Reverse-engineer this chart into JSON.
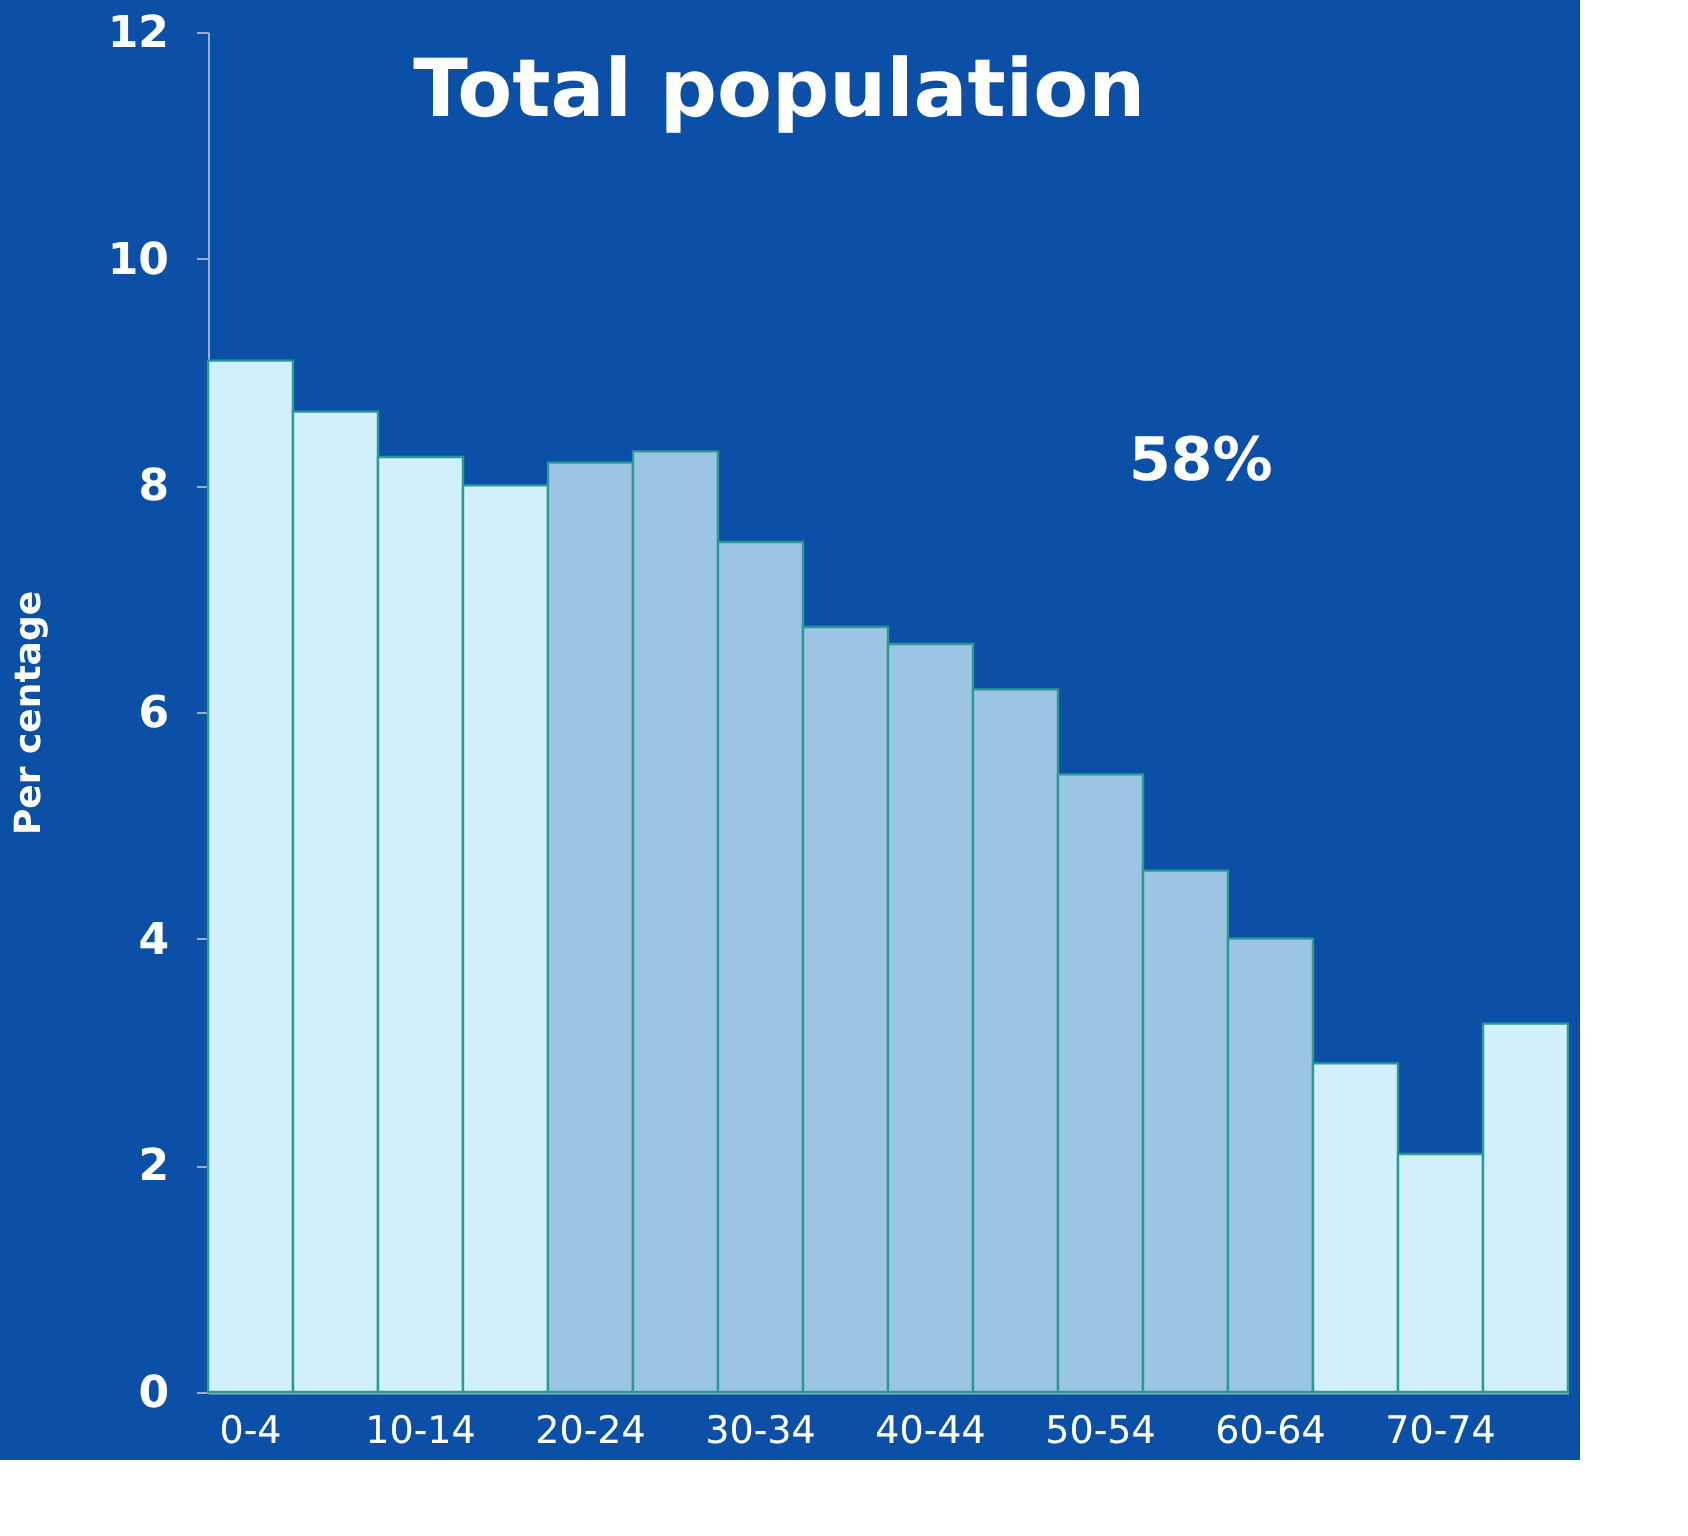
{
  "chart_data": {
    "type": "bar",
    "title": "Total population",
    "ylabel": "Per centage",
    "categories": [
      "0-4",
      null,
      "10-14",
      null,
      "20-24",
      null,
      "30-34",
      null,
      "40-44",
      null,
      "50-54",
      null,
      "60-64",
      null,
      "70-74",
      null
    ],
    "values": [
      9.1,
      8.65,
      8.25,
      8.0,
      8.2,
      8.3,
      7.5,
      6.75,
      6.6,
      6.2,
      5.45,
      4.6,
      4.0,
      2.9,
      2.1,
      3.25
    ],
    "colors": [
      "#d2effc",
      "#d2effc",
      "#d2effc",
      "#d2effc",
      "#9cc5e3",
      "#9cc5e3",
      "#9cc5e3",
      "#9cc5e3",
      "#9cc5e3",
      "#9cc5e3",
      "#9cc5e3",
      "#9cc5e3",
      "#9cc5e3",
      "#d2effc",
      "#d2effc",
      "#d2effc"
    ],
    "ylim": [
      0,
      12
    ],
    "yticks": [
      0,
      2,
      4,
      6,
      8,
      10,
      12
    ],
    "grid": false,
    "annotations": [
      "58%"
    ]
  }
}
